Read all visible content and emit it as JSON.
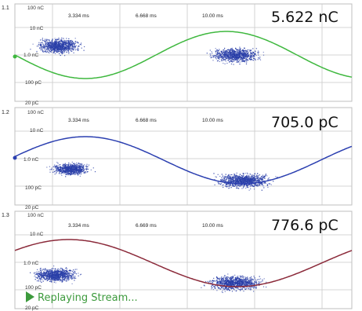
{
  "status_text": "Replaying Stream...",
  "panels": [
    {
      "channel": "1.1",
      "y_labels": {
        "top": "100 nC",
        "upper": "10 nC",
        "mid": "1.0 nC",
        "lower": "100 pC",
        "bottom": "20 pC"
      },
      "time_labels": [
        "3.334 ms",
        "6.668 ms",
        "10.00 ms"
      ],
      "readout": "5.622 nC",
      "trace_color": "#3fb83f"
    },
    {
      "channel": "1.2",
      "y_labels": {
        "top": "100 nC",
        "upper": "10 nC",
        "mid": "1.0 nC",
        "lower": "100 pC",
        "bottom": "20 pC"
      },
      "time_labels": [
        "3.334 ms",
        "6.668 ms",
        "10.00 ms"
      ],
      "readout": "705.0 pC",
      "trace_color": "#2b3fb0"
    },
    {
      "channel": "1.3",
      "y_labels": {
        "top": "100 nC",
        "upper": "10 nC",
        "mid": "1.0 nC",
        "lower": "100 pC",
        "bottom": "20 pC"
      },
      "time_labels": [
        "3.334 ms",
        "6.669 ms",
        "10.00 ms"
      ],
      "readout": "776.6 pC",
      "trace_color": "#8b2a3a"
    }
  ],
  "colors": {
    "grid": "#c8c8c8",
    "dots": "#2a3fa8",
    "status": "#3c9a3c"
  },
  "icons": {
    "play": "play-triangle-icon"
  }
}
